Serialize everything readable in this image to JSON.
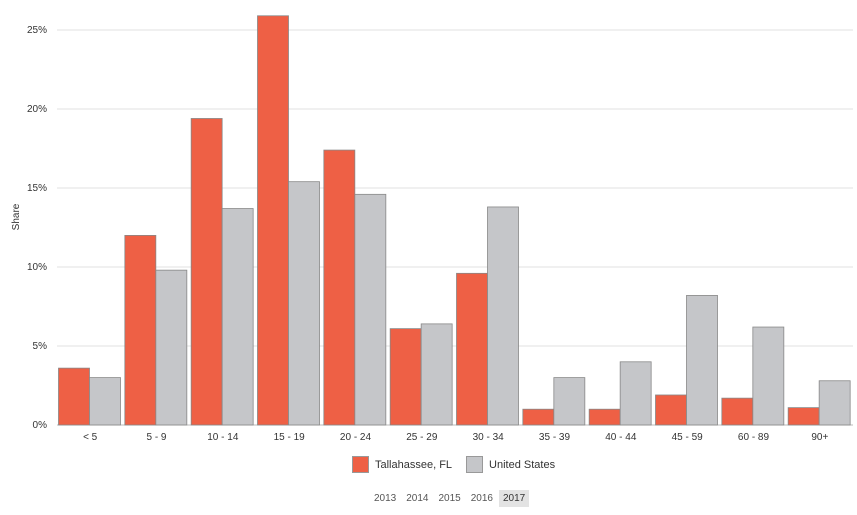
{
  "chart_data": {
    "type": "bar",
    "title": "",
    "xlabel": "",
    "ylabel": "Share",
    "ylim": [
      0,
      0.25
    ],
    "yticks": [
      "0%",
      "5%",
      "10%",
      "15%",
      "20%",
      "25%"
    ],
    "ytick_values": [
      0,
      0.05,
      0.1,
      0.15,
      0.2,
      0.25
    ],
    "categories": [
      "< 5",
      "5 - 9",
      "10 - 14",
      "15 - 19",
      "20 - 24",
      "25 - 29",
      "30 - 34",
      "35 - 39",
      "40 - 44",
      "45 - 59",
      "60 - 89",
      "90+"
    ],
    "series": [
      {
        "name": "Tallahassee, FL",
        "color": "#ee6045",
        "values": [
          0.036,
          0.12,
          0.194,
          0.259,
          0.174,
          0.061,
          0.096,
          0.01,
          0.01,
          0.019,
          0.017,
          0.011
        ]
      },
      {
        "name": "United States",
        "color": "#c5c6c9",
        "values": [
          0.03,
          0.098,
          0.137,
          0.154,
          0.146,
          0.064,
          0.138,
          0.03,
          0.04,
          0.082,
          0.062,
          0.028
        ]
      }
    ],
    "grid": true,
    "legend_position": "bottom-center"
  },
  "year_selector": {
    "years": [
      "2013",
      "2014",
      "2015",
      "2016",
      "2017"
    ],
    "selected": "2017"
  }
}
